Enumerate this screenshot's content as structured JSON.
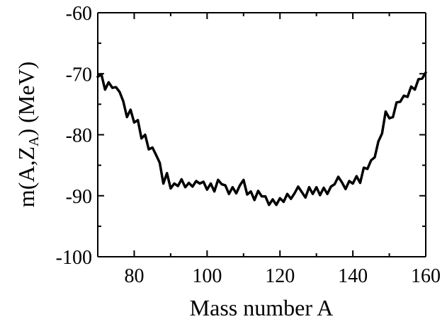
{
  "chart_data": {
    "type": "line",
    "title": "",
    "xlabel": "Mass number A",
    "ylabel": {
      "prefix": "m(A,Z",
      "subscript": "A",
      "suffix": ") (MeV)"
    },
    "xlim": [
      70,
      160
    ],
    "ylim": [
      -100,
      -60
    ],
    "xticks": [
      80,
      100,
      120,
      140,
      160
    ],
    "yticks": [
      -60,
      -70,
      -80,
      -90,
      -100
    ],
    "grid": false,
    "series": [
      {
        "name": "",
        "color": "#000000",
        "x": [
          70,
          71,
          72,
          73,
          74,
          75,
          76,
          77,
          78,
          79,
          80,
          81,
          82,
          83,
          84,
          85,
          86,
          87,
          88,
          89,
          90,
          91,
          92,
          93,
          94,
          95,
          96,
          97,
          98,
          99,
          100,
          101,
          102,
          103,
          104,
          105,
          106,
          107,
          108,
          109,
          110,
          111,
          112,
          113,
          114,
          115,
          116,
          117,
          118,
          119,
          120,
          121,
          122,
          123,
          124,
          125,
          126,
          127,
          128,
          129,
          130,
          131,
          132,
          133,
          134,
          135,
          136,
          137,
          138,
          139,
          140,
          141,
          142,
          143,
          144,
          145,
          146,
          147,
          148,
          149,
          150,
          151,
          152,
          153,
          154,
          155,
          156,
          157,
          158,
          159,
          160
        ],
        "y": [
          -70.5,
          -70.1,
          -72.6,
          -71.4,
          -72.3,
          -72.2,
          -73.0,
          -74.5,
          -77.1,
          -75.9,
          -78.0,
          -77.6,
          -80.6,
          -80.0,
          -82.4,
          -82.1,
          -83.3,
          -84.6,
          -88.0,
          -86.3,
          -88.8,
          -88.0,
          -88.4,
          -87.3,
          -88.6,
          -87.9,
          -88.5,
          -87.6,
          -88.0,
          -87.7,
          -89.0,
          -88.0,
          -89.3,
          -87.4,
          -88.1,
          -88.3,
          -89.7,
          -88.6,
          -89.6,
          -88.3,
          -87.4,
          -89.8,
          -89.3,
          -90.7,
          -89.2,
          -90.1,
          -90.1,
          -91.5,
          -90.6,
          -91.5,
          -90.4,
          -91.0,
          -89.7,
          -90.5,
          -89.6,
          -88.5,
          -89.4,
          -90.3,
          -88.6,
          -89.7,
          -88.6,
          -89.9,
          -88.7,
          -89.7,
          -88.5,
          -88.1,
          -86.9,
          -87.8,
          -88.9,
          -87.6,
          -88.0,
          -86.8,
          -87.9,
          -85.4,
          -85.6,
          -84.2,
          -83.7,
          -81.1,
          -79.8,
          -76.2,
          -77.3,
          -77.1,
          -74.7,
          -74.6,
          -73.6,
          -73.8,
          -72.1,
          -72.6,
          -70.9,
          -70.8,
          -69.8
        ]
      }
    ]
  }
}
